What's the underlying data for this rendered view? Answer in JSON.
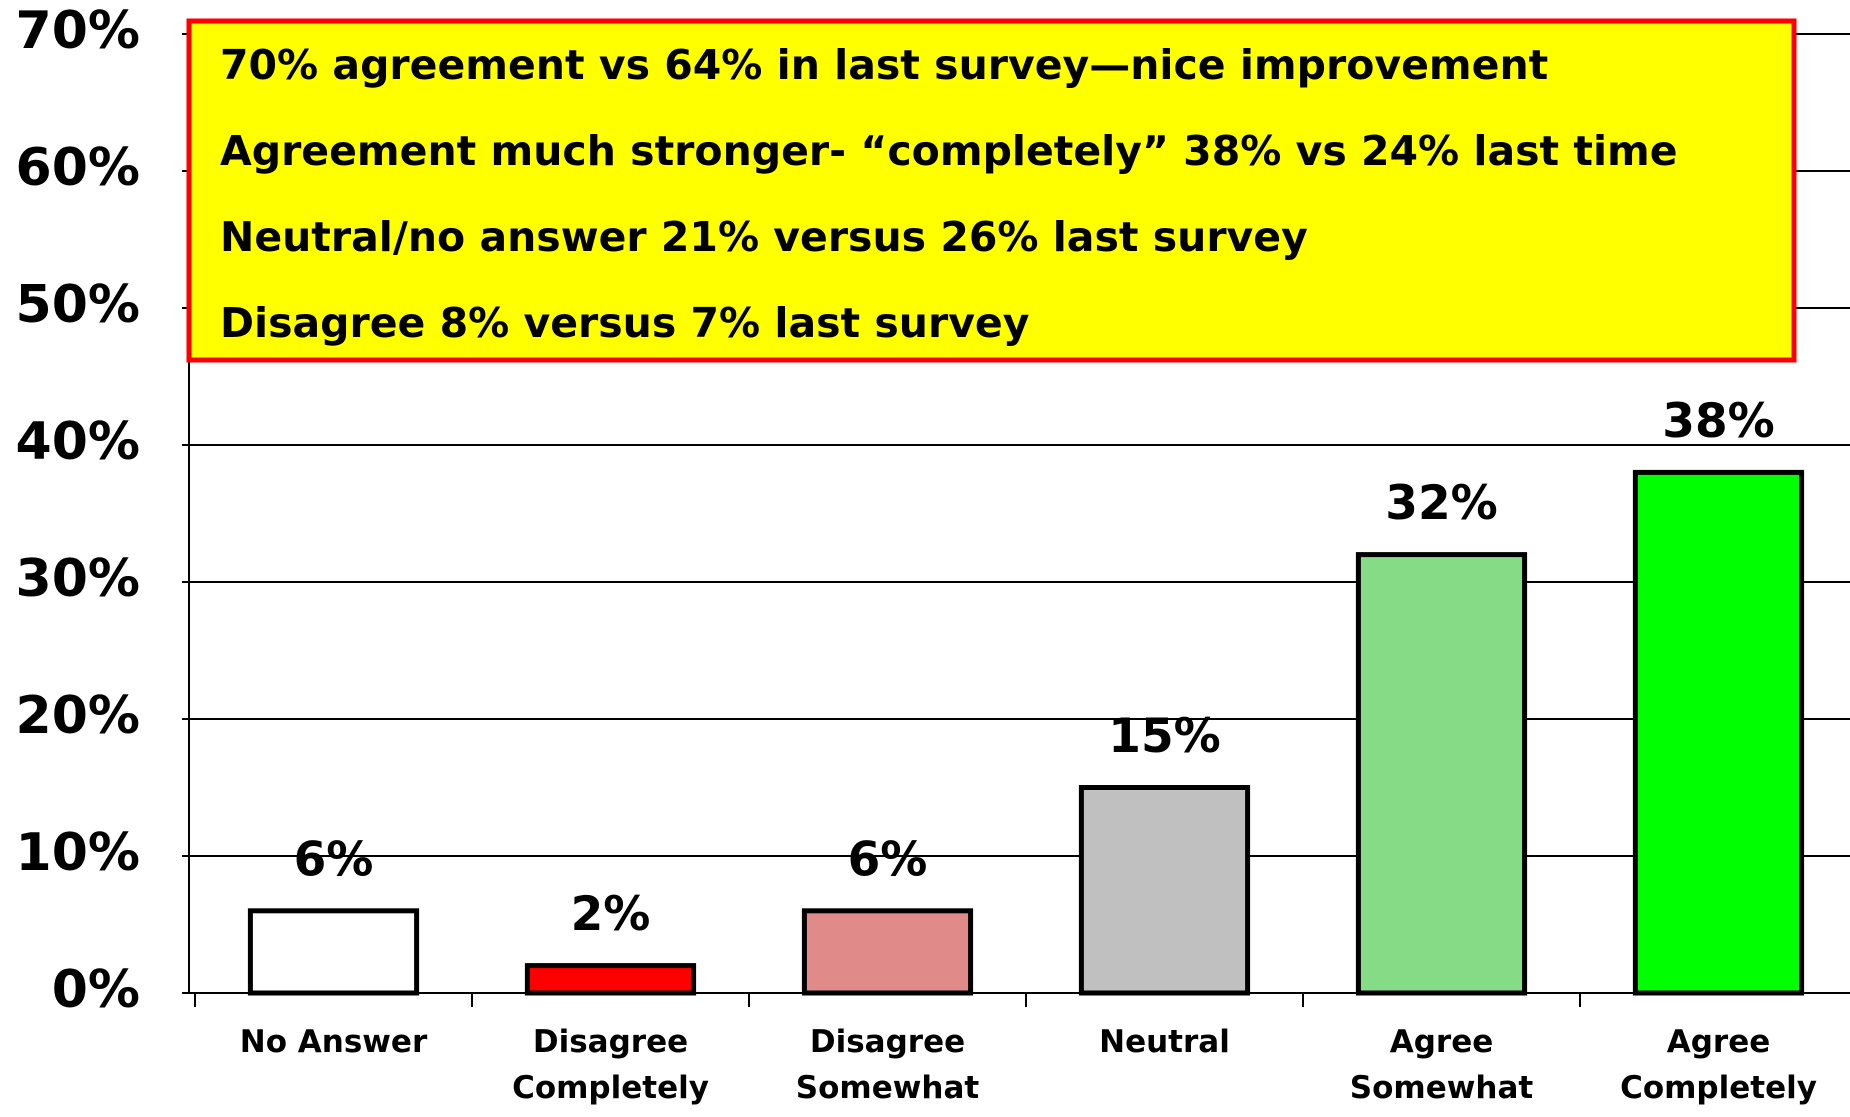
{
  "chart_data": {
    "type": "bar",
    "categories": [
      "No Answer",
      "Disagree\nCompletely",
      "Disagree\nSomewhat",
      "Neutral",
      "Agree\nSomewhat",
      "Agree\nCompletely"
    ],
    "values": [
      6,
      2,
      6,
      15,
      32,
      38
    ],
    "value_labels": [
      "6%",
      "2%",
      "6%",
      "15%",
      "32%",
      "38%"
    ],
    "colors": [
      "#ffffff",
      "#ff0000",
      "#e08a8a",
      "#c0c0c0",
      "#86dc86",
      "#00ff00"
    ],
    "ylim": [
      0,
      70
    ],
    "yticks": [
      {
        "value": 0,
        "label": "0%"
      },
      {
        "value": 10,
        "label": "10%"
      },
      {
        "value": 20,
        "label": "20%"
      },
      {
        "value": 30,
        "label": "30%"
      },
      {
        "value": 40,
        "label": "40%"
      },
      {
        "value": 50,
        "label": "50%"
      },
      {
        "value": 60,
        "label": "60%"
      },
      {
        "value": 70,
        "label": "70%"
      }
    ],
    "grid": true,
    "annotations": [
      "70% agreement vs 64% in last survey—nice improvement",
      "Agreement much stronger- “completely” 38% vs 24% last time",
      "Neutral/no answer 21% versus 26% last survey",
      "Disagree 8% versus 7% last survey"
    ]
  }
}
